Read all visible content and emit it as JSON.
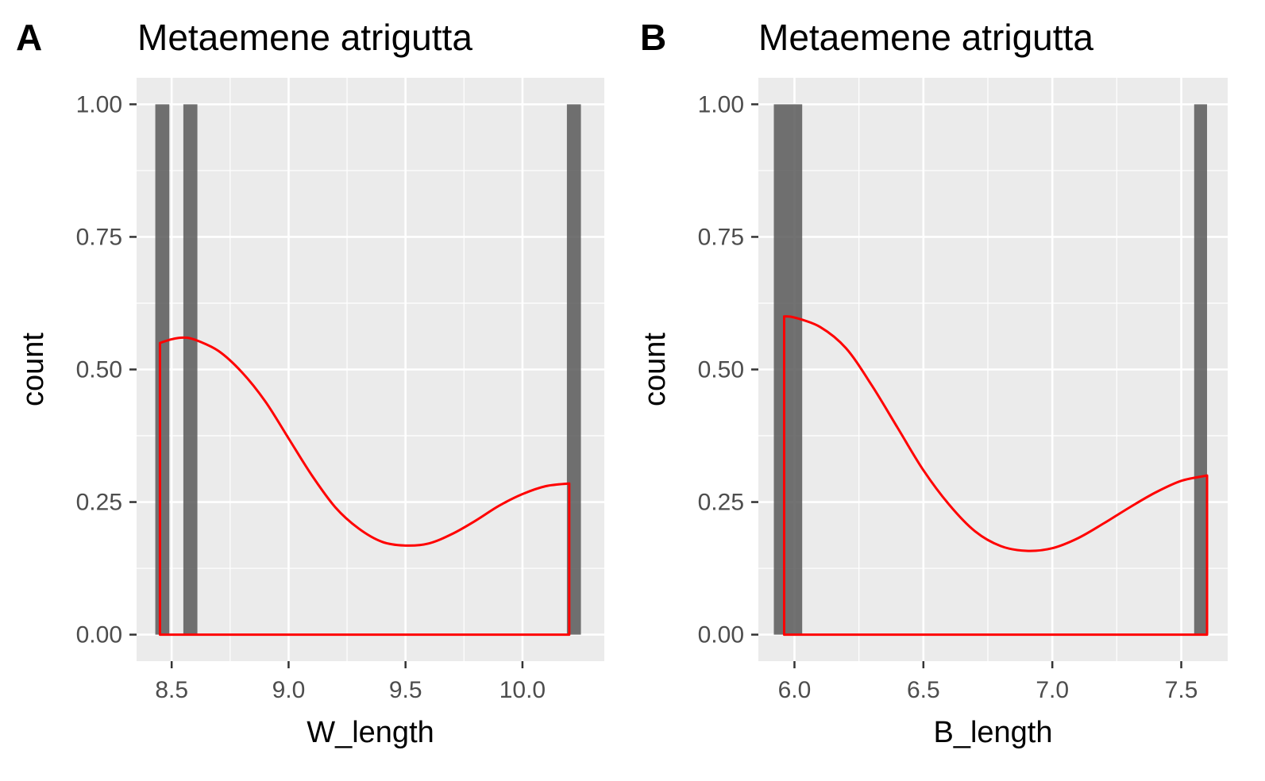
{
  "chart_data": [
    {
      "panel_label": "A",
      "type": "bar",
      "title": "Metaemene atrigutta",
      "xlabel": "W_length",
      "ylabel": "count",
      "xlim": [
        8.35,
        10.35
      ],
      "ylim": [
        -0.05,
        1.05
      ],
      "x_ticks": [
        8.5,
        9.0,
        9.5,
        10.0
      ],
      "x_tick_labels": [
        "8.5",
        "9.0",
        "9.5",
        "10.0"
      ],
      "y_ticks": [
        0,
        0.25,
        0.5,
        0.75,
        1.0
      ],
      "y_tick_labels": [
        "0.00",
        "0.25",
        "0.50",
        "0.75",
        "1.00"
      ],
      "grid": true,
      "bar_color": "#595959",
      "bins": [
        {
          "xmin": 8.43,
          "xmax": 8.49,
          "count": 1
        },
        {
          "xmin": 8.55,
          "xmax": 8.61,
          "count": 1
        },
        {
          "xmin": 10.19,
          "xmax": 10.25,
          "count": 1
        }
      ],
      "density_color": "#ff0000",
      "density": {
        "x": [
          8.45,
          8.5,
          8.55,
          8.6,
          8.7,
          8.8,
          8.9,
          9.0,
          9.1,
          9.2,
          9.3,
          9.4,
          9.5,
          9.6,
          9.7,
          9.8,
          9.9,
          10.0,
          10.1,
          10.2
        ],
        "y": [
          0.55,
          0.557,
          0.56,
          0.556,
          0.535,
          0.495,
          0.44,
          0.37,
          0.3,
          0.24,
          0.2,
          0.175,
          0.168,
          0.172,
          0.19,
          0.215,
          0.243,
          0.265,
          0.28,
          0.285
        ]
      }
    },
    {
      "panel_label": "B",
      "type": "bar",
      "title": "Metaemene atrigutta",
      "xlabel": "B_length",
      "ylabel": "count",
      "xlim": [
        5.86,
        7.68
      ],
      "ylim": [
        -0.05,
        1.05
      ],
      "x_ticks": [
        6.0,
        6.5,
        7.0,
        7.5
      ],
      "x_tick_labels": [
        "6.0",
        "6.5",
        "7.0",
        "7.5"
      ],
      "y_ticks": [
        0,
        0.25,
        0.5,
        0.75,
        1.0
      ],
      "y_tick_labels": [
        "0.00",
        "0.25",
        "0.50",
        "0.75",
        "1.00"
      ],
      "grid": true,
      "bar_color": "#595959",
      "bins": [
        {
          "xmin": 5.92,
          "xmax": 6.03,
          "count": 1
        },
        {
          "xmin": 7.55,
          "xmax": 7.6,
          "count": 1
        }
      ],
      "density_color": "#ff0000",
      "density": {
        "x": [
          5.96,
          6.0,
          6.1,
          6.2,
          6.3,
          6.4,
          6.5,
          6.6,
          6.7,
          6.8,
          6.9,
          7.0,
          7.1,
          7.2,
          7.3,
          7.4,
          7.5,
          7.6
        ],
        "y": [
          0.6,
          0.598,
          0.58,
          0.54,
          0.47,
          0.39,
          0.31,
          0.245,
          0.195,
          0.167,
          0.158,
          0.163,
          0.182,
          0.21,
          0.24,
          0.268,
          0.29,
          0.3
        ]
      }
    }
  ]
}
